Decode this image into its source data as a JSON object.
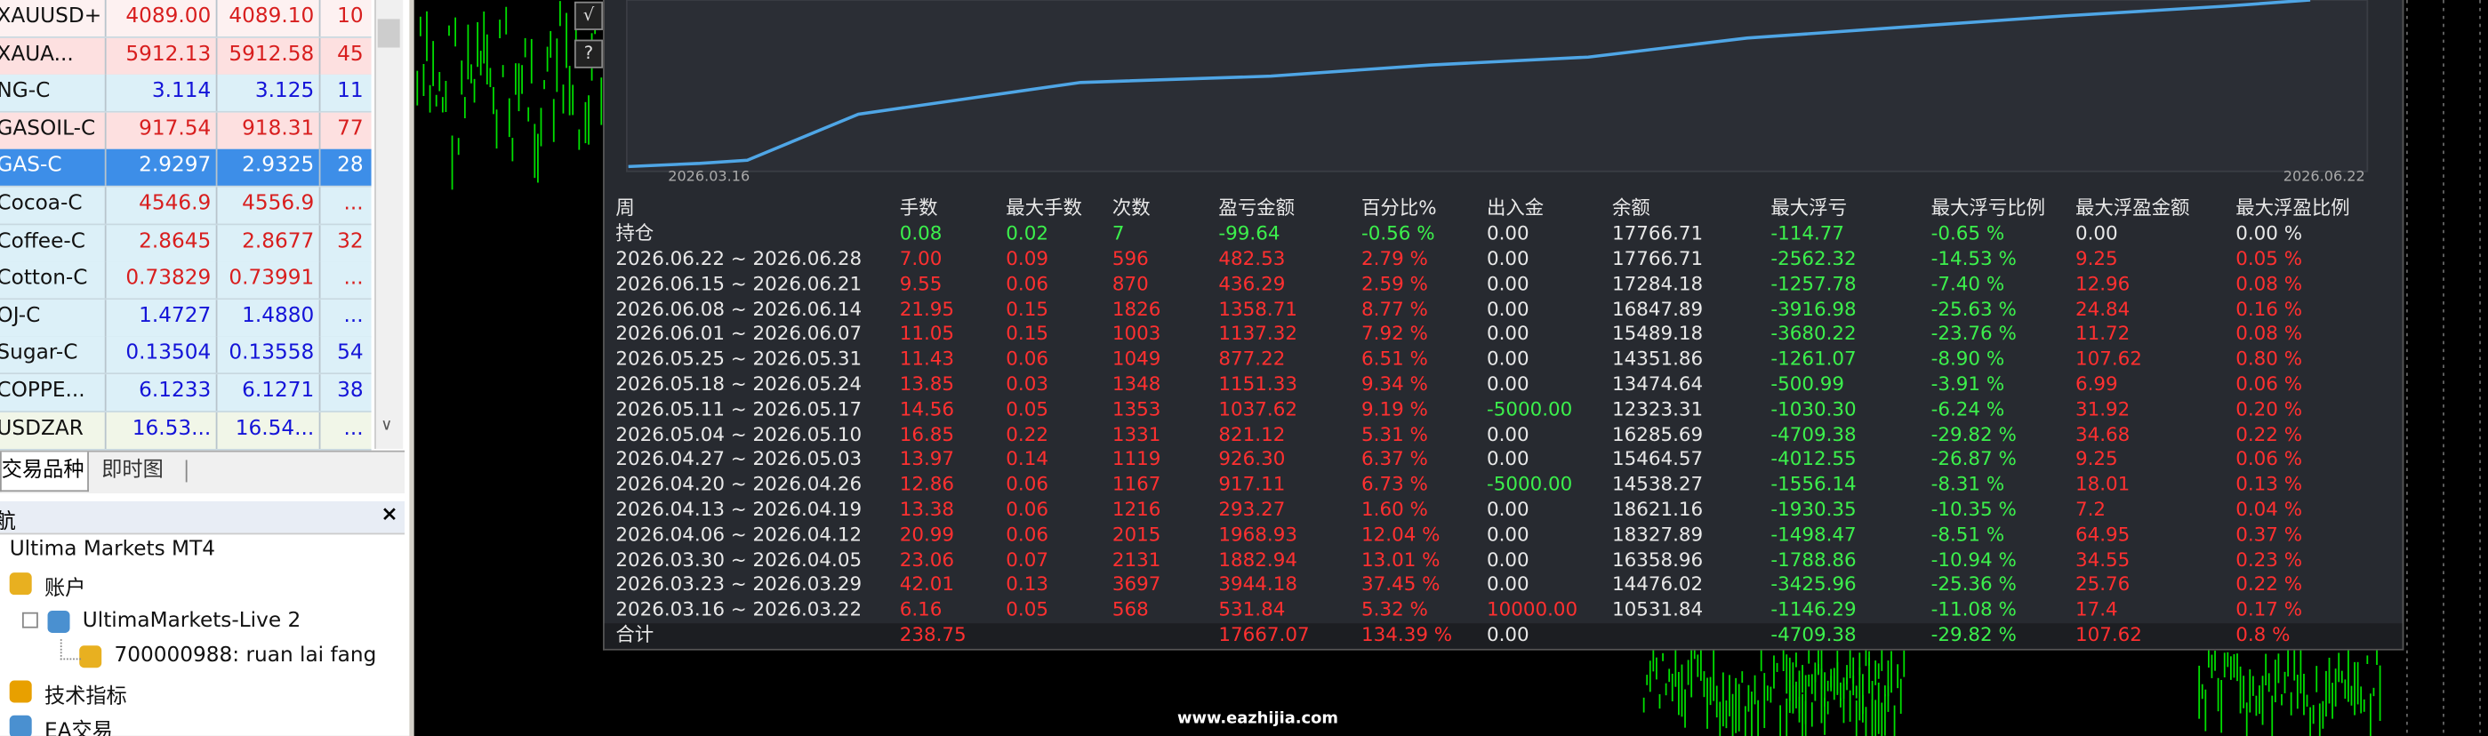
{
  "market_watch": {
    "rows": [
      {
        "cells": [
          "XAUUSD+",
          "4089.00",
          "4089.10",
          "10"
        ],
        "color": "#d81e1e",
        "bg": "#fdf1f1"
      },
      {
        "cells": [
          "XAUA...",
          "5912.13",
          "5912.58",
          "45"
        ],
        "color": "#d81e1e",
        "bg": "#fde0e0"
      },
      {
        "cells": [
          "NG-C",
          "3.114",
          "3.125",
          "11"
        ],
        "color": "#1414d8",
        "bg": "#dcf0f8"
      },
      {
        "cells": [
          "GASOIL-C",
          "917.54",
          "918.31",
          "77"
        ],
        "color": "#d81e1e",
        "bg": "#fde0e0"
      },
      {
        "cells": [
          "GAS-C",
          "2.9297",
          "2.9325",
          "28"
        ],
        "color": "#ffffff",
        "bg": "#3d8ee8"
      },
      {
        "cells": [
          "Cocoa-C",
          "4546.9",
          "4556.9",
          "..."
        ],
        "color": "#d81e1e",
        "bg": "#dcf0f8"
      },
      {
        "cells": [
          "Coffee-C",
          "2.8645",
          "2.8677",
          "32"
        ],
        "color": "#d81e1e",
        "bg": "#dcf0f8"
      },
      {
        "cells": [
          "Cotton-C",
          "0.73829",
          "0.73991",
          "..."
        ],
        "color": "#d81e1e",
        "bg": "#dcf0f8"
      },
      {
        "cells": [
          "OJ-C",
          "1.4727",
          "1.4880",
          "..."
        ],
        "color": "#1414d8",
        "bg": "#dcf0f8"
      },
      {
        "cells": [
          "Sugar-C",
          "0.13504",
          "0.13558",
          "54"
        ],
        "color": "#1414d8",
        "bg": "#dcf0f8"
      },
      {
        "cells": [
          "COPPE...",
          "6.1233",
          "6.1271",
          "38"
        ],
        "color": "#1414d8",
        "bg": "#dcf0f8"
      },
      {
        "cells": [
          "USDZAR",
          "16.53...",
          "16.54...",
          "..."
        ],
        "color": "#1414d8",
        "bg": "#f1f6e8"
      }
    ]
  },
  "tabs": [
    "交易品种",
    "即时图"
  ],
  "navigator": {
    "title": "航",
    "close": "×",
    "items": [
      "Ultima Markets MT4",
      "账户",
      "UltimaMarkets-Live 2",
      "700000988: ruan lai fang",
      "技术指标",
      "EA交易"
    ]
  },
  "chart": {
    "buttons": [
      "√",
      "?"
    ],
    "date_start": "2026.03.16",
    "date_end": "2026.06.22",
    "watermark": "www.eazhijia.com"
  },
  "report": {
    "headers": [
      "周",
      "手数",
      "最大手数",
      "次数",
      "盈亏金额",
      "百分比%",
      "出入金",
      "余额",
      "最大浮亏",
      "最大浮亏比例",
      "最大浮盈金额",
      "最大浮盈比例"
    ],
    "position": [
      "持仓",
      "0.08",
      "0.02",
      "7",
      "-99.64",
      "-0.56 %",
      "0.00",
      "17766.71",
      "-114.77",
      "-0.65 %",
      "0.00",
      "0.00 %"
    ],
    "rows": [
      [
        "2026.06.22 ~ 2026.06.28",
        "7.00",
        "0.09",
        "596",
        "482.53",
        "2.79 %",
        "0.00",
        "17766.71",
        "-2562.32",
        "-14.53 %",
        "9.25",
        "0.05 %"
      ],
      [
        "2026.06.15 ~ 2026.06.21",
        "9.55",
        "0.06",
        "870",
        "436.29",
        "2.59 %",
        "0.00",
        "17284.18",
        "-1257.78",
        "-7.40 %",
        "12.96",
        "0.08 %"
      ],
      [
        "2026.06.08 ~ 2026.06.14",
        "21.95",
        "0.15",
        "1826",
        "1358.71",
        "8.77 %",
        "0.00",
        "16847.89",
        "-3916.98",
        "-25.63 %",
        "24.84",
        "0.16 %"
      ],
      [
        "2026.06.01 ~ 2026.06.07",
        "11.05",
        "0.15",
        "1003",
        "1137.32",
        "7.92 %",
        "0.00",
        "15489.18",
        "-3680.22",
        "-23.76 %",
        "11.72",
        "0.08 %"
      ],
      [
        "2026.05.25 ~ 2026.05.31",
        "11.43",
        "0.06",
        "1049",
        "877.22",
        "6.51 %",
        "0.00",
        "14351.86",
        "-1261.07",
        "-8.90 %",
        "107.62",
        "0.80 %"
      ],
      [
        "2026.05.18 ~ 2026.05.24",
        "13.85",
        "0.03",
        "1348",
        "1151.33",
        "9.34 %",
        "0.00",
        "13474.64",
        "-500.99",
        "-3.91 %",
        "6.99",
        "0.06 %"
      ],
      [
        "2026.05.11 ~ 2026.05.17",
        "14.56",
        "0.05",
        "1353",
        "1037.62",
        "9.19 %",
        "-5000.00",
        "12323.31",
        "-1030.30",
        "-6.24 %",
        "31.92",
        "0.20 %"
      ],
      [
        "2026.05.04 ~ 2026.05.10",
        "16.85",
        "0.22",
        "1331",
        "821.12",
        "5.31 %",
        "0.00",
        "16285.69",
        "-4709.38",
        "-29.82 %",
        "34.68",
        "0.22 %"
      ],
      [
        "2026.04.27 ~ 2026.05.03",
        "13.97",
        "0.14",
        "1119",
        "926.30",
        "6.37 %",
        "0.00",
        "15464.57",
        "-4012.55",
        "-26.87 %",
        "9.25",
        "0.06 %"
      ],
      [
        "2026.04.20 ~ 2026.04.26",
        "12.86",
        "0.06",
        "1167",
        "917.11",
        "6.73 %",
        "-5000.00",
        "14538.27",
        "-1556.14",
        "-8.31 %",
        "18.01",
        "0.13 %"
      ],
      [
        "2026.04.13 ~ 2026.04.19",
        "13.38",
        "0.06",
        "1216",
        "293.27",
        "1.60 %",
        "0.00",
        "18621.16",
        "-1930.35",
        "-10.35 %",
        "7.2",
        "0.04 %"
      ],
      [
        "2026.04.06 ~ 2026.04.12",
        "20.99",
        "0.06",
        "2015",
        "1968.93",
        "12.04 %",
        "0.00",
        "18327.89",
        "-1498.47",
        "-8.51 %",
        "64.95",
        "0.37 %"
      ],
      [
        "2026.03.30 ~ 2026.04.05",
        "23.06",
        "0.07",
        "2131",
        "1882.94",
        "13.01 %",
        "0.00",
        "16358.96",
        "-1788.86",
        "-10.94 %",
        "34.55",
        "0.23 %"
      ],
      [
        "2026.03.23 ~ 2026.03.29",
        "42.01",
        "0.13",
        "3697",
        "3944.18",
        "37.45 %",
        "0.00",
        "14476.02",
        "-3425.96",
        "-25.36 %",
        "25.76",
        "0.22 %"
      ],
      [
        "2026.03.16 ~ 2026.03.22",
        "6.16",
        "0.05",
        "568",
        "531.84",
        "5.32 %",
        "10000.00",
        "10531.84",
        "-1146.29",
        "-11.08 %",
        "17.4",
        "0.17 %"
      ]
    ],
    "total": [
      "合计",
      "238.75",
      null,
      null,
      "17667.07",
      "134.39 %",
      "0.00",
      null,
      "-4709.38",
      "-29.82 %",
      "107.62",
      "0.8 %"
    ]
  }
}
